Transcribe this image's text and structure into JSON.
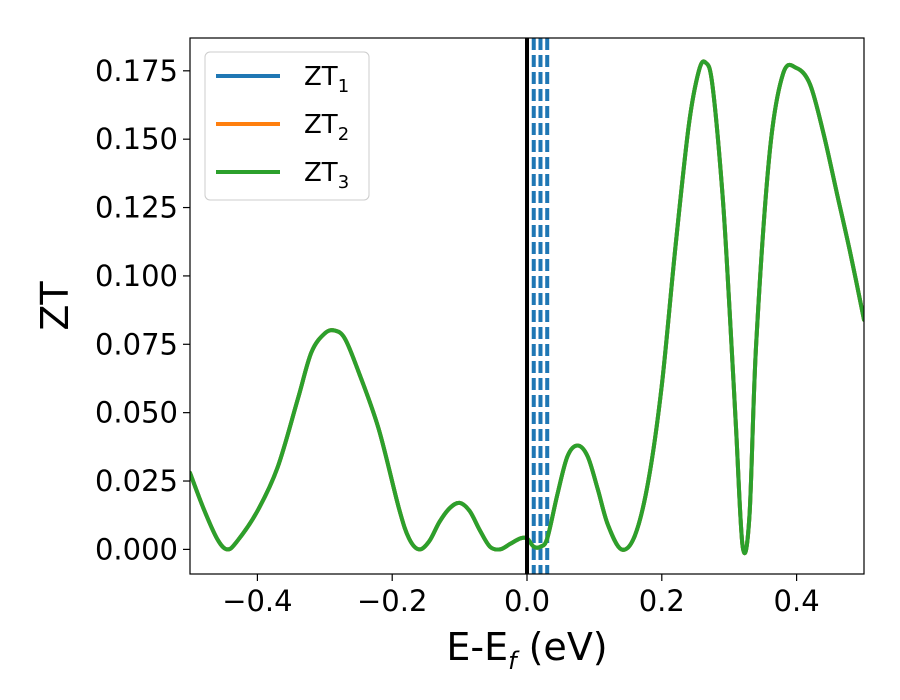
{
  "chart_data": {
    "type": "line",
    "xlabel": "E-E",
    "xlabel_sub": "f",
    "xlabel_unit": " (eV)",
    "ylabel": "ZT",
    "xlim": [
      -0.5,
      0.5
    ],
    "ylim": [
      -0.009,
      0.187
    ],
    "x_ticks": [
      -0.4,
      -0.2,
      0.0,
      0.2,
      0.4
    ],
    "x_tick_labels": [
      "−0.4",
      "−0.2",
      "0.0",
      "0.2",
      "0.4"
    ],
    "y_ticks": [
      0.0,
      0.025,
      0.05,
      0.075,
      0.1,
      0.125,
      0.15,
      0.175
    ],
    "y_tick_labels": [
      "0.000",
      "0.025",
      "0.050",
      "0.075",
      "0.100",
      "0.125",
      "0.150",
      "0.175"
    ],
    "grid": false,
    "legend_position": "top-left",
    "fermi_line": {
      "x": 0.0,
      "color": "#000000"
    },
    "dashed_lines": {
      "x": [
        0.01,
        0.02,
        0.03
      ],
      "color": "#1f77b4"
    },
    "series": [
      {
        "name": "ZT",
        "name_sub": "1",
        "color": "#1f77b4",
        "x": [
          -0.5,
          -0.48,
          -0.46,
          -0.445,
          -0.43,
          -0.4,
          -0.37,
          -0.34,
          -0.32,
          -0.3,
          -0.285,
          -0.27,
          -0.25,
          -0.22,
          -0.19,
          -0.175,
          -0.16,
          -0.145,
          -0.13,
          -0.115,
          -0.1,
          -0.085,
          -0.07,
          -0.055,
          -0.04,
          -0.025,
          -0.01,
          0.0,
          0.01,
          0.02,
          0.03,
          0.045,
          0.06,
          0.075,
          0.09,
          0.105,
          0.12,
          0.14,
          0.16,
          0.18,
          0.2,
          0.22,
          0.24,
          0.255,
          0.265,
          0.275,
          0.29,
          0.3,
          0.31,
          0.32,
          0.33,
          0.34,
          0.36,
          0.38,
          0.4,
          0.42,
          0.44,
          0.46,
          0.48,
          0.5
        ],
        "y": [
          0.028,
          0.015,
          0.004,
          0.0,
          0.003,
          0.014,
          0.03,
          0.055,
          0.072,
          0.079,
          0.08,
          0.077,
          0.065,
          0.044,
          0.015,
          0.004,
          0.0,
          0.003,
          0.01,
          0.015,
          0.017,
          0.014,
          0.007,
          0.001,
          0.0,
          0.002,
          0.004,
          0.004,
          0.001,
          0.001,
          0.004,
          0.02,
          0.034,
          0.038,
          0.034,
          0.022,
          0.009,
          0.0,
          0.005,
          0.025,
          0.06,
          0.11,
          0.155,
          0.175,
          0.178,
          0.17,
          0.13,
          0.09,
          0.045,
          0.001,
          0.012,
          0.075,
          0.145,
          0.174,
          0.176,
          0.17,
          0.152,
          0.13,
          0.108,
          0.084
        ]
      },
      {
        "name": "ZT",
        "name_sub": "2",
        "color": "#ff7f0e",
        "x": [
          -0.5,
          -0.48,
          -0.46,
          -0.445,
          -0.43,
          -0.4,
          -0.37,
          -0.34,
          -0.32,
          -0.3,
          -0.285,
          -0.27,
          -0.25,
          -0.22,
          -0.19,
          -0.175,
          -0.16,
          -0.145,
          -0.13,
          -0.115,
          -0.1,
          -0.085,
          -0.07,
          -0.055,
          -0.04,
          -0.025,
          -0.01,
          0.0,
          0.01,
          0.02,
          0.03,
          0.045,
          0.06,
          0.075,
          0.09,
          0.105,
          0.12,
          0.14,
          0.16,
          0.18,
          0.2,
          0.22,
          0.24,
          0.255,
          0.265,
          0.275,
          0.29,
          0.3,
          0.31,
          0.32,
          0.33,
          0.34,
          0.36,
          0.38,
          0.4,
          0.42,
          0.44,
          0.46,
          0.48,
          0.5
        ],
        "y": [
          0.028,
          0.015,
          0.004,
          0.0,
          0.003,
          0.014,
          0.03,
          0.055,
          0.072,
          0.079,
          0.08,
          0.077,
          0.065,
          0.044,
          0.015,
          0.004,
          0.0,
          0.003,
          0.01,
          0.015,
          0.017,
          0.014,
          0.007,
          0.001,
          0.0,
          0.002,
          0.004,
          0.004,
          0.001,
          0.001,
          0.004,
          0.02,
          0.034,
          0.038,
          0.034,
          0.022,
          0.009,
          0.0,
          0.005,
          0.025,
          0.06,
          0.11,
          0.155,
          0.175,
          0.178,
          0.17,
          0.13,
          0.09,
          0.045,
          0.001,
          0.012,
          0.075,
          0.145,
          0.174,
          0.176,
          0.17,
          0.152,
          0.13,
          0.108,
          0.084
        ]
      },
      {
        "name": "ZT",
        "name_sub": "3",
        "color": "#2ca02c",
        "x": [
          -0.5,
          -0.48,
          -0.46,
          -0.445,
          -0.43,
          -0.4,
          -0.37,
          -0.34,
          -0.32,
          -0.3,
          -0.285,
          -0.27,
          -0.25,
          -0.22,
          -0.19,
          -0.175,
          -0.16,
          -0.145,
          -0.13,
          -0.115,
          -0.1,
          -0.085,
          -0.07,
          -0.055,
          -0.04,
          -0.025,
          -0.01,
          0.0,
          0.01,
          0.02,
          0.03,
          0.045,
          0.06,
          0.075,
          0.09,
          0.105,
          0.12,
          0.14,
          0.16,
          0.18,
          0.2,
          0.22,
          0.24,
          0.255,
          0.265,
          0.275,
          0.29,
          0.3,
          0.31,
          0.32,
          0.33,
          0.34,
          0.36,
          0.38,
          0.4,
          0.42,
          0.44,
          0.46,
          0.48,
          0.5
        ],
        "y": [
          0.028,
          0.015,
          0.004,
          0.0,
          0.003,
          0.014,
          0.03,
          0.055,
          0.072,
          0.079,
          0.08,
          0.077,
          0.065,
          0.044,
          0.015,
          0.004,
          0.0,
          0.003,
          0.01,
          0.015,
          0.017,
          0.014,
          0.007,
          0.001,
          0.0,
          0.002,
          0.004,
          0.004,
          0.001,
          0.001,
          0.004,
          0.02,
          0.034,
          0.038,
          0.034,
          0.022,
          0.009,
          0.0,
          0.005,
          0.025,
          0.06,
          0.11,
          0.155,
          0.175,
          0.178,
          0.17,
          0.13,
          0.09,
          0.045,
          0.001,
          0.012,
          0.075,
          0.145,
          0.174,
          0.176,
          0.17,
          0.152,
          0.13,
          0.108,
          0.084
        ]
      }
    ]
  }
}
